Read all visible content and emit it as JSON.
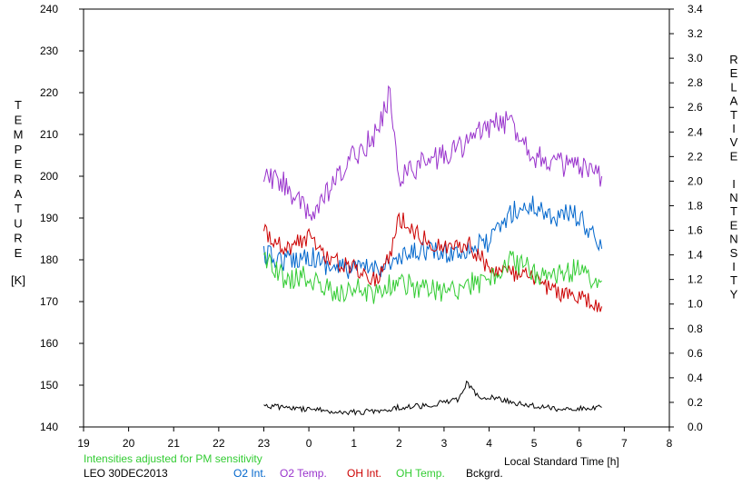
{
  "chart_data": {
    "type": "line",
    "title": "",
    "xlabel": "Local Standard Time [h]",
    "ylabel_left": "TEMPERATURE",
    "ylabel_left_unit": "[K]",
    "ylabel_right": "RELATIVE INTENSITY",
    "x_ticks": [
      "19",
      "20",
      "21",
      "22",
      "23",
      "0",
      "1",
      "2",
      "3",
      "4",
      "5",
      "6",
      "7",
      "8"
    ],
    "xlim": [
      19,
      32
    ],
    "ylim_left": [
      140,
      240
    ],
    "ylim_right": [
      0.0,
      3.4
    ],
    "y_ticks_left": [
      "140",
      "150",
      "160",
      "170",
      "180",
      "190",
      "200",
      "210",
      "220",
      "230",
      "240"
    ],
    "y_ticks_right": [
      "0.0",
      "0.2",
      "0.4",
      "0.6",
      "0.8",
      "1.0",
      "1.2",
      "1.4",
      "1.6",
      "1.8",
      "2.0",
      "2.2",
      "2.4",
      "2.6",
      "2.8",
      "3.0",
      "3.2",
      "3.4"
    ],
    "grid": false,
    "note": "Intensities adjusted for PM sensitivity",
    "station": "LEO 30DEC2013",
    "series": [
      {
        "name": "O2 Int.",
        "axis": "right",
        "color": "#0066cc",
        "x": [
          23.0,
          23.5,
          24.0,
          24.5,
          25.0,
          25.5,
          26.0,
          26.5,
          27.0,
          27.5,
          28.0,
          28.5,
          29.0,
          29.5,
          29.8,
          30.0,
          30.3,
          30.5
        ],
        "y": [
          1.4,
          1.35,
          1.4,
          1.3,
          1.28,
          1.3,
          1.35,
          1.45,
          1.4,
          1.45,
          1.5,
          1.75,
          1.8,
          1.7,
          1.75,
          1.7,
          1.55,
          1.45
        ]
      },
      {
        "name": "O2 Temp.",
        "axis": "left",
        "color": "#9933cc",
        "x": [
          23.0,
          23.5,
          24.0,
          24.5,
          25.0,
          25.5,
          25.8,
          26.0,
          26.5,
          27.0,
          27.5,
          28.0,
          28.5,
          29.0,
          29.5,
          30.0,
          30.3,
          30.5
        ],
        "y": [
          200,
          198,
          190,
          197,
          205,
          210,
          220,
          200,
          203,
          205,
          208,
          212,
          213,
          205,
          203,
          202,
          200,
          200
        ]
      },
      {
        "name": "OH Int.",
        "axis": "right",
        "color": "#cc0000",
        "x": [
          23.0,
          23.5,
          24.0,
          24.5,
          25.0,
          25.5,
          25.8,
          26.0,
          26.5,
          27.0,
          27.5,
          28.0,
          28.5,
          29.0,
          29.5,
          30.0,
          30.3,
          30.5
        ],
        "y": [
          1.6,
          1.45,
          1.55,
          1.35,
          1.3,
          1.2,
          1.4,
          1.7,
          1.55,
          1.45,
          1.5,
          1.3,
          1.25,
          1.2,
          1.1,
          1.05,
          1.0,
          0.98
        ]
      },
      {
        "name": "OH Temp.",
        "axis": "left",
        "color": "#33cc33",
        "x": [
          23.0,
          23.5,
          24.0,
          24.5,
          25.0,
          25.5,
          26.0,
          26.5,
          27.0,
          27.5,
          28.0,
          28.5,
          29.0,
          29.5,
          30.0,
          30.3,
          30.5
        ],
        "y": [
          180,
          175,
          176,
          172,
          173,
          172,
          175,
          173,
          172,
          174,
          175,
          180,
          177,
          176,
          178,
          175,
          175
        ]
      },
      {
        "name": "Bckgrd.",
        "axis": "right",
        "color": "#000000",
        "x": [
          23.0,
          23.5,
          24.0,
          24.5,
          25.0,
          25.5,
          26.0,
          26.5,
          27.0,
          27.3,
          27.5,
          27.8,
          28.0,
          28.5,
          29.0,
          29.5,
          30.0,
          30.5
        ],
        "y": [
          0.17,
          0.16,
          0.14,
          0.13,
          0.12,
          0.13,
          0.16,
          0.17,
          0.2,
          0.22,
          0.36,
          0.22,
          0.25,
          0.2,
          0.17,
          0.15,
          0.15,
          0.16
        ]
      }
    ]
  },
  "legend": {
    "note_color": "#33cc33"
  }
}
